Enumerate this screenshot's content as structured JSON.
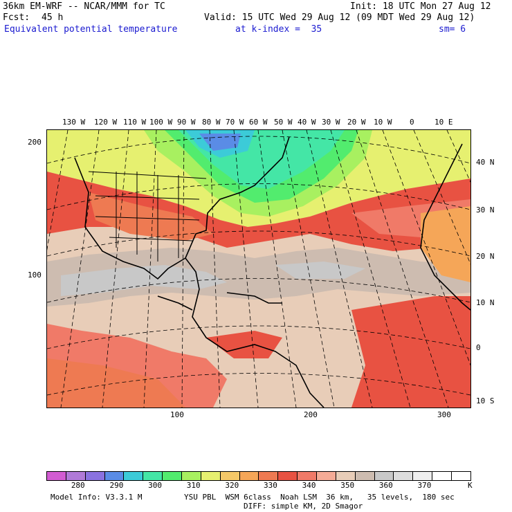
{
  "header": {
    "model_title": "36km EM-WRF -- NCAR/MMM for TC",
    "init_time": "Init: 18 UTC Mon 27 Aug 12",
    "forecast_label": "Fcst:",
    "forecast_hours": "45 h",
    "valid_time": "Valid: 15 UTC Wed 29 Aug 12 (09 MDT Wed 29 Aug 12)",
    "field_name": "Equivalent potential temperature",
    "level_label": "at k-index =  35",
    "smoothing": "sm= 6"
  },
  "map": {
    "top_longitudes": [
      "130 W",
      "120 W",
      "110 W",
      "100 W",
      "90 W",
      "80 W",
      "70 W",
      "60 W",
      "50 W",
      "40 W",
      "30 W",
      "20 W",
      "10 W",
      "0",
      "10 E"
    ],
    "right_latitudes": [
      "40 N",
      "30 N",
      "20 N",
      "10 N",
      "0",
      "10 S"
    ],
    "left_grid_ticks": [
      "200",
      "100"
    ],
    "bottom_grid_ticks": [
      "100",
      "200",
      "300"
    ]
  },
  "colorbar": {
    "colors": [
      "#d25cd2",
      "#b07ad8",
      "#8a72e0",
      "#5a8ce6",
      "#3ccbd8",
      "#44e6a6",
      "#52ec6e",
      "#a8f060",
      "#e6f070",
      "#f5c868",
      "#f5a658",
      "#ee7a52",
      "#e85242",
      "#f07a68",
      "#f5ab96",
      "#e8cdb8",
      "#cdbcb0",
      "#c8c8c8",
      "#dcdcdc",
      "#eeeeee",
      "#ffffff",
      "#ffffff"
    ],
    "labels": [
      "280",
      "290",
      "300",
      "310",
      "320",
      "330",
      "340",
      "350",
      "360",
      "370"
    ],
    "unit": "K"
  },
  "footer": {
    "model_info": "Model Info: V3.3.1 M",
    "physics": "YSU PBL  WSM 6class  Noah LSM  36 km,   35 levels,  180 sec",
    "diffusion": "DIFF: simple KM, 2D Smagor"
  }
}
